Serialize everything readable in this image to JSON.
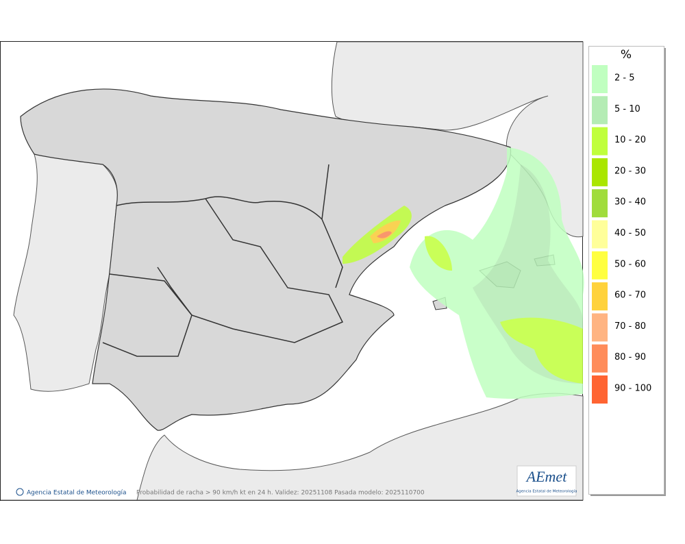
{
  "legend": {
    "title": "%",
    "items": [
      {
        "label": "2 - 5",
        "color": "#c0ffc0"
      },
      {
        "label": "5 - 10",
        "color": "#b4ecb4"
      },
      {
        "label": "10 - 20",
        "color": "#c0ff3c"
      },
      {
        "label": "20 - 30",
        "color": "#aae600"
      },
      {
        "label": "30 - 40",
        "color": "#a0dc3c"
      },
      {
        "label": "40 - 50",
        "color": "#ffff9a"
      },
      {
        "label": "50 - 60",
        "color": "#ffff40"
      },
      {
        "label": "60 - 70",
        "color": "#ffd23c"
      },
      {
        "label": "70 - 80",
        "color": "#ffb482"
      },
      {
        "label": "80 - 90",
        "color": "#ff8c5a"
      },
      {
        "label": "90 - 100",
        "color": "#ff6432"
      }
    ]
  },
  "footer": {
    "credit": "Agencia Estatal de Meteorología",
    "caption": "Probabilidad de racha > 90 km/h kt en 24 h. Validez: 20251108 Pasada modelo: 2025110700"
  },
  "logo": {
    "name": "AEmet",
    "subtitle": "Agencia Estatal de Meteorología"
  }
}
